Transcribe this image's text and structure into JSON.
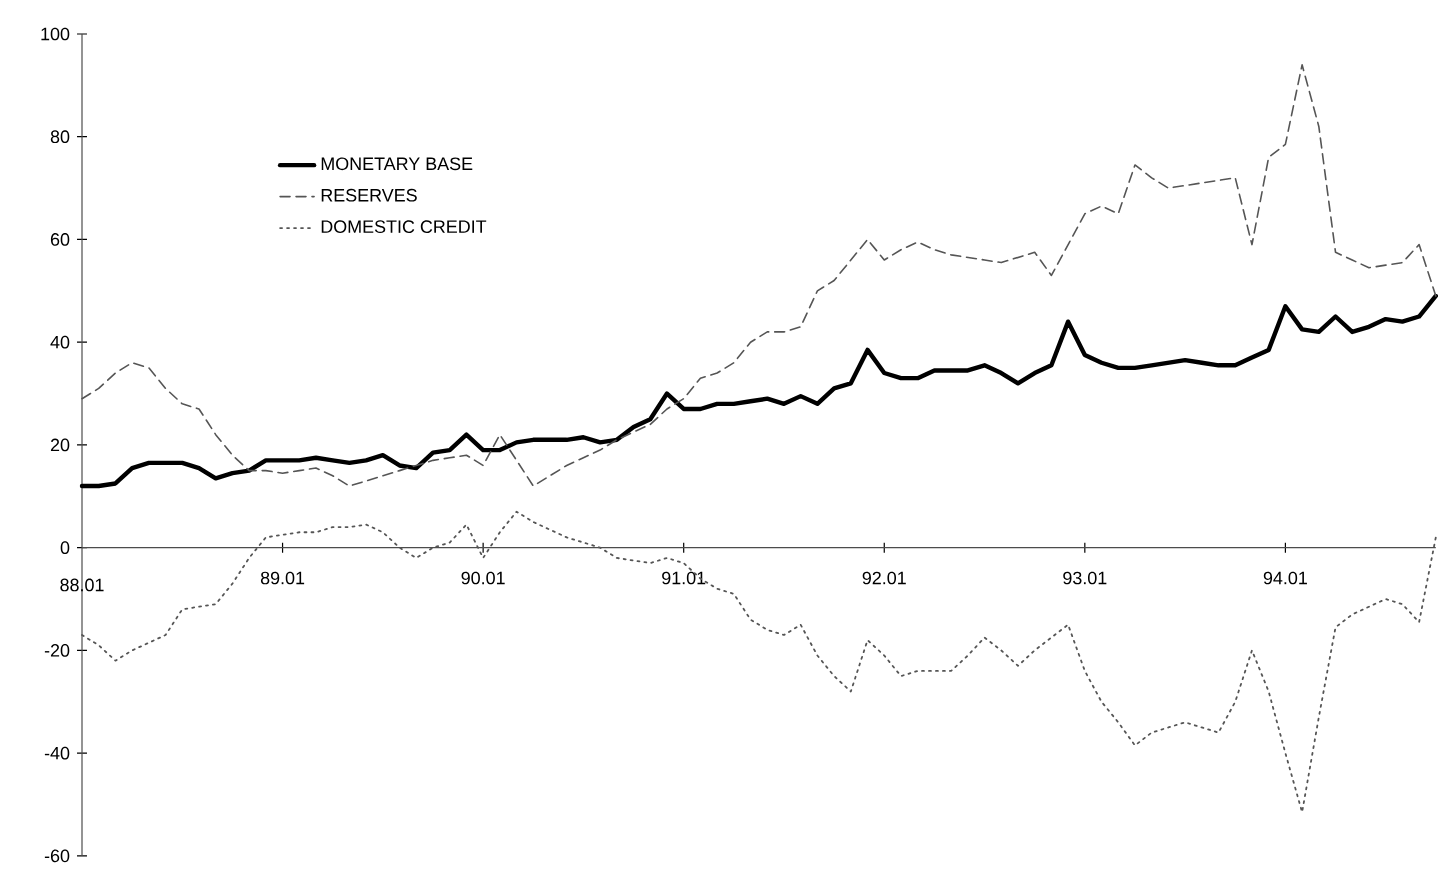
{
  "chart_data": {
    "type": "line",
    "ylim": [
      -60,
      100
    ],
    "grid": false,
    "categories": [
      "88.01",
      null,
      null,
      null,
      null,
      null,
      null,
      null,
      null,
      null,
      null,
      null,
      "89.01",
      null,
      null,
      null,
      null,
      null,
      null,
      null,
      null,
      null,
      null,
      null,
      "90.01",
      null,
      null,
      null,
      null,
      null,
      null,
      null,
      null,
      null,
      null,
      null,
      "91.01",
      null,
      null,
      null,
      null,
      null,
      null,
      null,
      null,
      null,
      null,
      null,
      "92.01",
      null,
      null,
      null,
      null,
      null,
      null,
      null,
      null,
      null,
      null,
      null,
      "93.01",
      null,
      null,
      null,
      null,
      null,
      null,
      null,
      null,
      null,
      null,
      null,
      "94.01",
      null,
      null,
      null,
      null,
      null,
      null,
      null,
      null,
      null
    ],
    "yticks": [
      -60,
      -40,
      -20,
      0,
      20,
      40,
      60,
      80,
      100
    ],
    "legend": "top left",
    "series": [
      {
        "name": "MONETARY BASE",
        "color": "#000000",
        "line_style": "solid",
        "values": [
          12,
          12,
          12.5,
          15.5,
          16.5,
          16.5,
          16.5,
          15.5,
          13.5,
          14.5,
          15,
          17,
          17,
          17,
          17.5,
          17,
          16.5,
          17,
          18,
          16,
          15.5,
          18.5,
          19,
          22,
          19,
          19,
          20.5,
          21,
          21,
          21,
          21.5,
          20.5,
          21,
          23.5,
          25,
          30,
          27,
          27,
          28,
          28,
          28.5,
          29,
          28,
          29.5,
          28,
          31,
          32,
          38.5,
          34,
          33,
          33,
          34.5,
          34.5,
          34.5,
          35.5,
          34,
          32,
          34,
          35.5,
          44,
          37.5,
          36,
          35,
          35,
          35.5,
          36,
          36.5,
          36,
          35.5,
          35.5,
          37,
          38.5,
          47,
          42.5,
          42,
          45,
          42,
          43,
          44.5,
          44,
          45,
          49
        ]
      },
      {
        "name": "RESERVES",
        "color": "#555555",
        "line_style": "dashed",
        "values": [
          29,
          31,
          34,
          36,
          35,
          31,
          28,
          27,
          22,
          18,
          15,
          15,
          14.5,
          15,
          15.5,
          14,
          12,
          13,
          14,
          15,
          16,
          17,
          17.5,
          18,
          16,
          22,
          17,
          12,
          14,
          16,
          17.5,
          19,
          21,
          22.5,
          24,
          27,
          29,
          33,
          34,
          36,
          40,
          42,
          42,
          43,
          50,
          52,
          56,
          60,
          56,
          58,
          59.5,
          58,
          57,
          56.5,
          56,
          55.5,
          56.5,
          57.5,
          53,
          59,
          65,
          66.5,
          65,
          74.5,
          72,
          70,
          70.5,
          71,
          71.5,
          72,
          59,
          76,
          78.5,
          94,
          82,
          57.5,
          56,
          54.5,
          55,
          55.5,
          59,
          49
        ]
      },
      {
        "name": "DOMESTIC CREDIT",
        "color": "#555555",
        "line_style": "dotted",
        "values": [
          -17,
          -19,
          -22,
          -20,
          -18.5,
          -17,
          -12,
          -11.5,
          -11,
          -7,
          -2,
          2,
          2.5,
          3,
          3,
          4,
          4,
          4.5,
          3,
          0,
          -2,
          0,
          1,
          4.5,
          -2,
          3,
          7,
          5,
          3.5,
          2,
          1,
          0,
          -2,
          -2.5,
          -3,
          -2,
          -3,
          -6,
          -8,
          -9,
          -14,
          -16,
          -17,
          -15,
          -21,
          -25,
          -28,
          -18,
          -21,
          -25,
          -24,
          -24,
          -24,
          -21,
          -17.5,
          -20,
          -23,
          -20,
          -17.5,
          -15,
          -24,
          -30,
          -34,
          -38.5,
          -36,
          -35,
          -34,
          -35,
          -36,
          -30,
          -20,
          -28,
          -40,
          -51.5,
          -33,
          -15.5,
          -13,
          -11.5,
          -10,
          -11,
          -14.5,
          2
        ]
      }
    ]
  }
}
